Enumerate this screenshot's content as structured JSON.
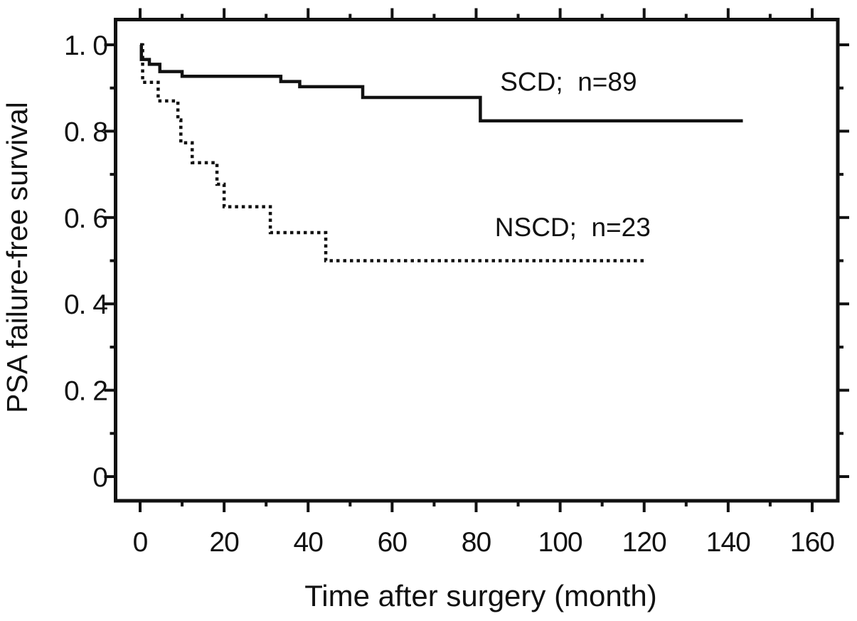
{
  "figure": {
    "background_color": "#ffffff",
    "ink_color": "#111111"
  },
  "chart_data": {
    "type": "line",
    "subtype": "kaplan-meier-step",
    "title": "",
    "xlabel": "Time after surgery (month)",
    "ylabel": "PSA failure-free survival",
    "xlim": [
      -6,
      166
    ],
    "ylim": [
      -0.056,
      1.059
    ],
    "grid": false,
    "frame": "box-with-outward-ticks",
    "x_ticks": {
      "major_values": [
        0,
        20,
        40,
        60,
        80,
        100,
        120,
        140,
        160
      ],
      "major_labels": [
        "0",
        "20",
        "40",
        "60",
        "80",
        "100",
        "120",
        "140",
        "160"
      ],
      "minor_values": [
        10,
        30,
        50,
        70,
        90,
        110,
        130,
        150
      ]
    },
    "y_ticks": {
      "major_values": [
        0,
        0.2,
        0.4,
        0.6,
        0.8,
        1.0
      ],
      "major_labels": [
        "0",
        "0. 2",
        "0. 4",
        "0. 6",
        "0. 8",
        "1. 0"
      ],
      "minor_values": [
        0.1,
        0.3,
        0.5,
        0.7,
        0.9
      ]
    },
    "series": [
      {
        "name": "NSCD",
        "n": 23,
        "legend": "NSCD;  n=23",
        "line": "dotted",
        "steps": [
          [
            0,
            1.0
          ],
          [
            0.6,
            0.913
          ],
          [
            4.3,
            0.87
          ],
          [
            9.0,
            0.826
          ],
          [
            9.7,
            0.773
          ],
          [
            12.4,
            0.727
          ],
          [
            18.3,
            0.677
          ],
          [
            20,
            0.625
          ],
          [
            31,
            0.565
          ],
          [
            44.2,
            0.5
          ]
        ],
        "end_t": 120,
        "label_pos": {
          "t": 103,
          "s": 0.578
        }
      },
      {
        "name": "SCD",
        "n": 89,
        "legend": "SCD;  n=89",
        "line": "solid",
        "steps": [
          [
            0,
            1.0
          ],
          [
            0.3,
            0.966
          ],
          [
            2.2,
            0.955
          ],
          [
            4.7,
            0.938
          ],
          [
            10,
            0.927
          ],
          [
            33.5,
            0.915
          ],
          [
            38,
            0.903
          ],
          [
            53,
            0.878
          ],
          [
            81,
            0.824
          ]
        ],
        "end_t": 143.5,
        "label_pos": {
          "t": 102,
          "s": 0.915
        }
      }
    ]
  }
}
